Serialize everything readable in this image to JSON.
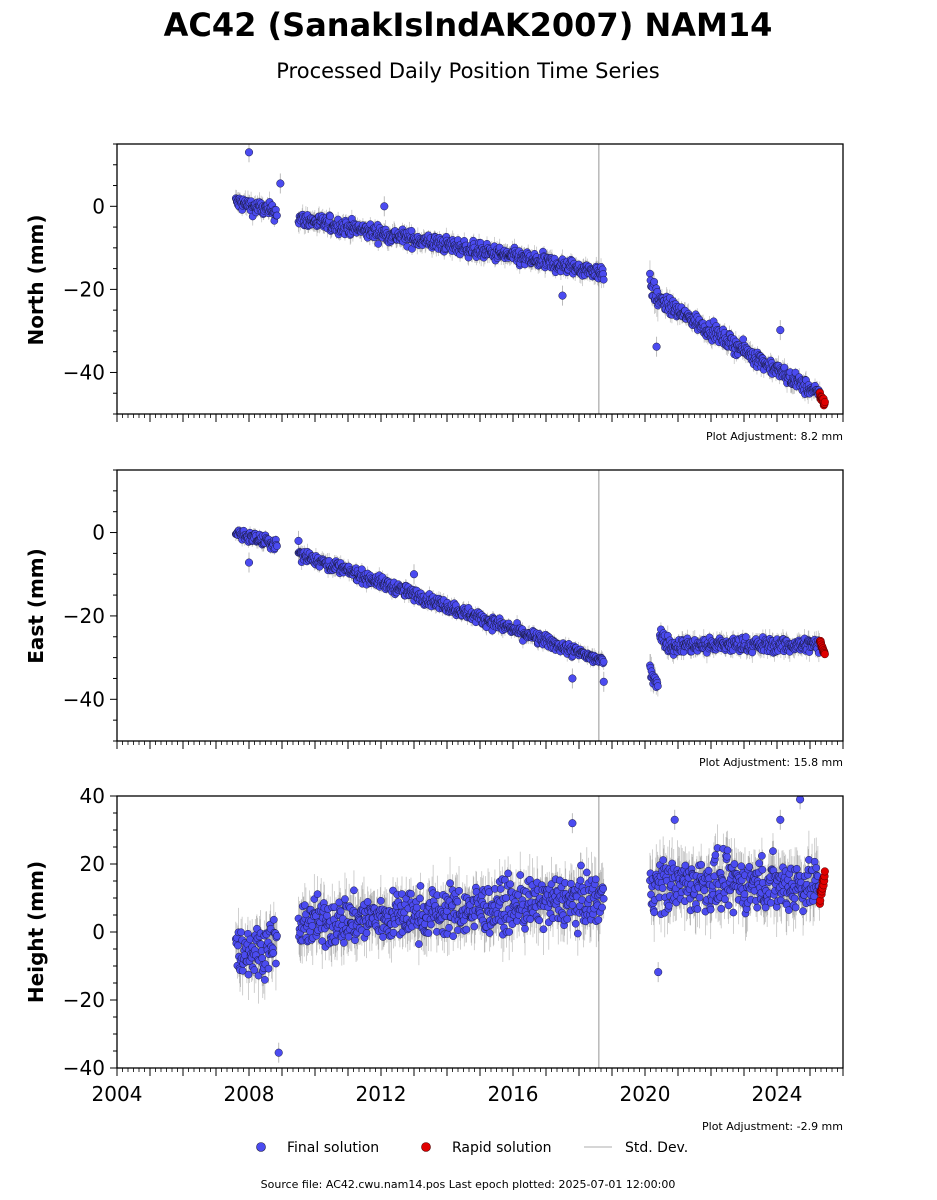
{
  "figure": {
    "title": "AC42 (SanakIslndAK2007) NAM14",
    "subtitle": "Processed Daily Position Time Series",
    "source": "Source file: AC42.cwu.nam14.pos  Last epoch plotted: 2025-07-01 12:00:00"
  },
  "legend": {
    "final": "Final solution",
    "rapid": "Rapid solution",
    "std": "Std. Dev."
  },
  "colors": {
    "final": "#4b4bf0",
    "final_edge": "#1a1a40",
    "rapid": "#e00000",
    "std": "#c8c8c8",
    "event_line": "#b8b8b8"
  },
  "chart_data": [
    {
      "type": "scatter",
      "ylabel": "North (mm)",
      "adjustment": "Plot Adjustment: 8.2 mm",
      "xlim": [
        2004.0,
        2026.0
      ],
      "ylim": [
        -50,
        15
      ],
      "yticks": [
        -40,
        -20,
        0
      ],
      "event_line_x": 2018.6,
      "series": [
        {
          "name": "Final solution",
          "segments": [
            {
              "x": [
                2007.6,
                2008.85
              ],
              "y": [
                1.0,
                -1.5
              ],
              "noise": 1.3,
              "sigma": 1.8
            },
            {
              "x": [
                2009.5,
                2018.75
              ],
              "y": [
                -3.0,
                -16.0
              ],
              "noise": 1.3,
              "sigma": 1.8
            },
            {
              "x": [
                2020.15,
                2020.4
              ],
              "y": [
                -19.5,
                -22.0
              ],
              "noise": 2.0,
              "sigma": 2.8
            },
            {
              "x": [
                2020.4,
                2025.3
              ],
              "y": [
                -22.5,
                -45.5
              ],
              "noise": 1.3,
              "sigma": 1.8
            }
          ],
          "outliers": [
            [
              2008.0,
              13.0
            ],
            [
              2008.95,
              5.5
            ],
            [
              2020.35,
              -33.8
            ],
            [
              2024.1,
              -29.8
            ],
            [
              2017.5,
              -21.5
            ],
            [
              2012.1,
              0.0
            ]
          ]
        },
        {
          "name": "Rapid solution",
          "segment": {
            "x": [
              2025.3,
              2025.45
            ],
            "y": [
              -45.5,
              -47.5
            ],
            "noise": 1.2
          }
        }
      ]
    },
    {
      "type": "scatter",
      "ylabel": "East (mm)",
      "adjustment": "Plot Adjustment: 15.8 mm",
      "xlim": [
        2004.0,
        2026.0
      ],
      "ylim": [
        -50,
        15
      ],
      "yticks": [
        -40,
        -20,
        0
      ],
      "event_line_x": 2018.6,
      "series": [
        {
          "name": "Final solution",
          "segments": [
            {
              "x": [
                2007.6,
                2008.85
              ],
              "y": [
                0.0,
                -3.0
              ],
              "noise": 0.9,
              "sigma": 1.4
            },
            {
              "x": [
                2009.5,
                2018.75
              ],
              "y": [
                -5.0,
                -31.0
              ],
              "noise": 1.0,
              "sigma": 1.4
            },
            {
              "x": [
                2020.15,
                2020.4
              ],
              "y": [
                -33.0,
                -36.0
              ],
              "noise": 1.8,
              "sigma": 2.5
            },
            {
              "x": [
                2020.45,
                2020.9
              ],
              "y": [
                -24.5,
                -28.0
              ],
              "noise": 1.3,
              "sigma": 1.8
            },
            {
              "x": [
                2020.9,
                2025.3
              ],
              "y": [
                -27.0,
                -27.0
              ],
              "noise": 1.3,
              "sigma": 1.8
            }
          ],
          "outliers": [
            [
              2008.0,
              -7.2
            ],
            [
              2018.75,
              -35.8
            ],
            [
              2017.8,
              -35.0
            ],
            [
              2009.5,
              -2.0
            ],
            [
              2013.0,
              -10.0
            ]
          ]
        },
        {
          "name": "Rapid solution",
          "segment": {
            "x": [
              2025.3,
              2025.45
            ],
            "y": [
              -26.0,
              -29.0
            ],
            "noise": 1.0
          }
        }
      ]
    },
    {
      "type": "scatter",
      "ylabel": "Height (mm)",
      "adjustment": "Plot Adjustment: -2.9 mm",
      "xlim": [
        2004.0,
        2026.0
      ],
      "ylim": [
        -40,
        40
      ],
      "yticks": [
        -40,
        -20,
        0,
        20,
        40
      ],
      "xticks": [
        2004,
        2008,
        2012,
        2016,
        2020,
        2024
      ],
      "event_line_x": 2018.6,
      "series": [
        {
          "name": "Final solution",
          "segments": [
            {
              "x": [
                2007.6,
                2008.85
              ],
              "y": [
                -6.0,
                -4.0
              ],
              "noise": 5.0,
              "sigma": 6.0
            },
            {
              "x": [
                2009.5,
                2018.75
              ],
              "y": [
                2.0,
                10.0
              ],
              "noise": 5.0,
              "sigma": 6.0
            },
            {
              "x": [
                2020.15,
                2025.3
              ],
              "y": [
                14.0,
                14.0
              ],
              "noise": 5.5,
              "sigma": 6.5
            }
          ],
          "outliers": [
            [
              2008.9,
              -35.5
            ],
            [
              2024.7,
              39.0
            ],
            [
              2020.4,
              -11.8
            ],
            [
              2017.8,
              32.0
            ],
            [
              2024.1,
              33.0
            ],
            [
              2020.9,
              33.0
            ]
          ]
        },
        {
          "name": "Rapid solution",
          "segment": {
            "x": [
              2025.3,
              2025.45
            ],
            "y": [
              9.5,
              17.5
            ],
            "noise": 2.5
          }
        }
      ]
    }
  ]
}
